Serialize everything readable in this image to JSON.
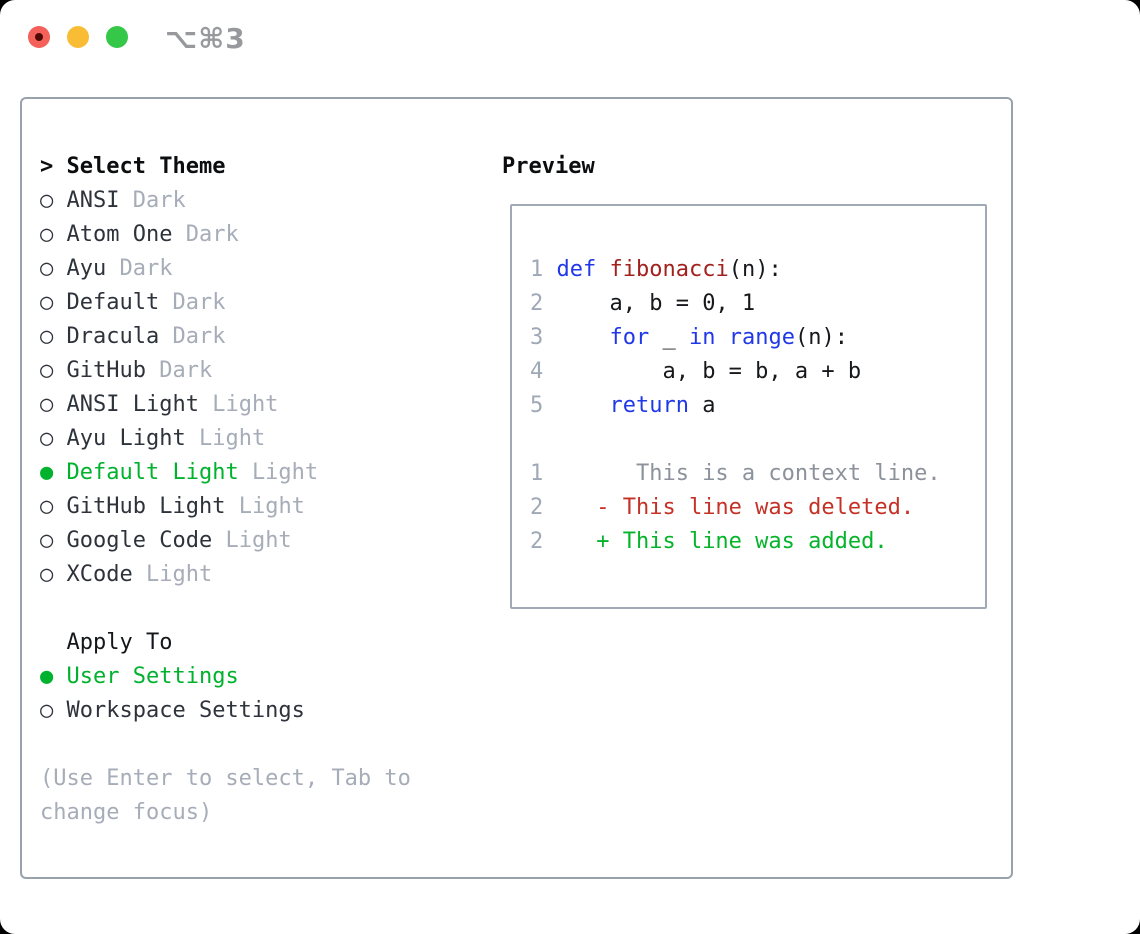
{
  "titlebar": {
    "shortcut_label": "⌥⌘3"
  },
  "glyphs": {
    "cursor": ">",
    "selected_marker": "●",
    "unselected_marker": "○"
  },
  "colors": {
    "accent_green": "#00b22d",
    "keyword_blue": "#2038e8",
    "function_red": "#a2211e",
    "deleted_red": "#c43227",
    "muted_gray": "#a6adb8",
    "panel_border": "#98a1ac",
    "traffic_red": "#f4605a",
    "traffic_yellow": "#f9bd35",
    "traffic_green": "#34c748"
  },
  "theme_picker": {
    "header": "Select Theme",
    "items": [
      {
        "name": "ANSI",
        "variant": "Dark",
        "selected": false
      },
      {
        "name": "Atom One",
        "variant": "Dark",
        "selected": false
      },
      {
        "name": "Ayu",
        "variant": "Dark",
        "selected": false
      },
      {
        "name": "Default",
        "variant": "Dark",
        "selected": false
      },
      {
        "name": "Dracula",
        "variant": "Dark",
        "selected": false
      },
      {
        "name": "GitHub",
        "variant": "Dark",
        "selected": false
      },
      {
        "name": "ANSI Light",
        "variant": "Light",
        "selected": false
      },
      {
        "name": "Ayu Light",
        "variant": "Light",
        "selected": false
      },
      {
        "name": "Default Light",
        "variant": "Light",
        "selected": true
      },
      {
        "name": "GitHub Light",
        "variant": "Light",
        "selected": false
      },
      {
        "name": "Google Code",
        "variant": "Light",
        "selected": false
      },
      {
        "name": "XCode",
        "variant": "Light",
        "selected": false
      }
    ]
  },
  "apply_to": {
    "header": "Apply To",
    "items": [
      {
        "name": "User Settings",
        "selected": true
      },
      {
        "name": "Workspace Settings",
        "selected": false
      }
    ]
  },
  "hint": {
    "lines": [
      "(Use Enter to select, Tab to",
      "change focus)"
    ]
  },
  "preview": {
    "header": "Preview",
    "lines": [
      [
        {
          "t": "1",
          "c": "num"
        },
        {
          "t": " ",
          "c": "pln"
        },
        {
          "t": "def",
          "c": "kw"
        },
        {
          "t": " ",
          "c": "pln"
        },
        {
          "t": "fibonacci",
          "c": "fn"
        },
        {
          "t": "(n):",
          "c": "pln"
        }
      ],
      [
        {
          "t": "2",
          "c": "num"
        },
        {
          "t": "     a, b = 0, 1",
          "c": "pln"
        }
      ],
      [
        {
          "t": "3",
          "c": "num"
        },
        {
          "t": "     ",
          "c": "pln"
        },
        {
          "t": "for",
          "c": "kw"
        },
        {
          "t": " _ ",
          "c": "pln"
        },
        {
          "t": "in",
          "c": "kw"
        },
        {
          "t": " ",
          "c": "pln"
        },
        {
          "t": "range",
          "c": "kw"
        },
        {
          "t": "(n):",
          "c": "pln"
        }
      ],
      [
        {
          "t": "4",
          "c": "num"
        },
        {
          "t": "         a, b = b, a + b",
          "c": "pln"
        }
      ],
      [
        {
          "t": "5",
          "c": "num"
        },
        {
          "t": "     ",
          "c": "pln"
        },
        {
          "t": "return",
          "c": "kw"
        },
        {
          "t": " a",
          "c": "pln"
        }
      ],
      [],
      [
        {
          "t": "1",
          "c": "num"
        },
        {
          "t": "       This is a context line.",
          "c": "ctx"
        }
      ],
      [
        {
          "t": "2",
          "c": "num"
        },
        {
          "t": "    - This line was deleted.",
          "c": "del"
        }
      ],
      [
        {
          "t": "2",
          "c": "num"
        },
        {
          "t": "    + This line was added.",
          "c": "add"
        }
      ]
    ]
  }
}
